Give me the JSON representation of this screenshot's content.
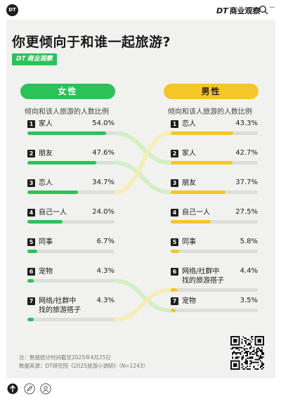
{
  "topbar": {
    "logo_text": "DT",
    "brand_dt": "DT",
    "brand_name": "商业观察",
    "more": "···"
  },
  "title": "你更倾向于和谁一起旅游?",
  "tag": {
    "dt": "DT",
    "name": "商业观察"
  },
  "chart_data": {
    "type": "bar",
    "subtitle": "倾向和该人旅游的人数比例",
    "female": {
      "header": "女性",
      "categories": [
        "家人",
        "朋友",
        "恋人",
        "自己一人",
        "同事",
        "宠物",
        "网络/社群中找的旅游搭子"
      ],
      "labels": [
        "家人",
        "朋友",
        "恋人",
        "自己一人",
        "同事",
        "宠物",
        "网络/社群中\n找的旅游搭子"
      ],
      "values": [
        54.0,
        47.6,
        34.7,
        24.0,
        6.7,
        4.3,
        4.3
      ],
      "values_text": [
        "54.0%",
        "47.6%",
        "34.7%",
        "24.0%",
        "6.7%",
        "4.3%",
        "4.3%"
      ],
      "color": "#2dc15a"
    },
    "male": {
      "header": "男性",
      "categories": [
        "恋人",
        "家人",
        "朋友",
        "自己一人",
        "同事",
        "网络/社群中找的旅游搭子",
        "宠物"
      ],
      "labels": [
        "恋人",
        "家人",
        "朋友",
        "自己一人",
        "同事",
        "网络/社群中\n找的旅游搭子",
        "宠物"
      ],
      "values": [
        43.3,
        42.7,
        37.7,
        27.5,
        5.8,
        4.4,
        3.5
      ],
      "values_text": [
        "43.3%",
        "42.7%",
        "37.7%",
        "27.5%",
        "5.8%",
        "4.4%",
        "3.5%"
      ],
      "color": "#f5c627"
    },
    "xlim": [
      0,
      60
    ],
    "ranks": [
      "1",
      "2",
      "3",
      "4",
      "5",
      "6",
      "7"
    ]
  },
  "notes": {
    "line1": "注：数据统计时间截至2025年4月25日",
    "line2": "数据来源：DT研究院《2025旅游小调研》（N=1243）"
  },
  "colors": {
    "green": "#2dc15a",
    "yellow": "#f5c627",
    "connector_green": "#cfeec0",
    "connector_yellow": "#f6ecb0"
  }
}
